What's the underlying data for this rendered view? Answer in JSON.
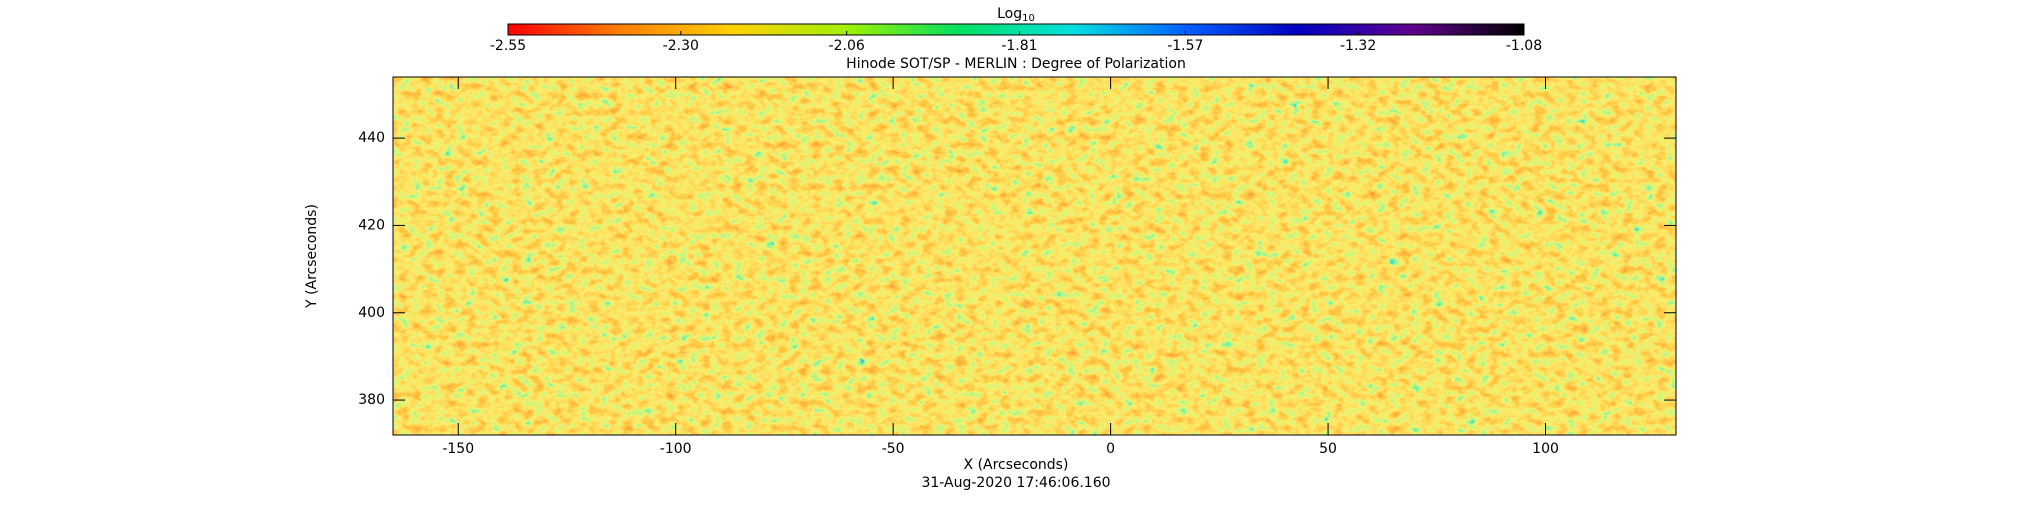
{
  "chart_data": {
    "type": "heatmap",
    "title": "Hinode SOT/SP - MERLIN : Degree of Polarization",
    "colorbar_label": "Log",
    "colorbar_label_sub": "10",
    "clim": [
      -2.55,
      -1.08
    ],
    "cticks": [
      -2.55,
      {
        "value": -2.3,
        "label": "-2.30"
      },
      -2.06,
      -1.81,
      -1.57,
      -1.32,
      -1.08
    ],
    "colormap": [
      "#ff0000",
      "#ff8000",
      "#ffd200",
      "#a0f000",
      "#00e060",
      "#00e0e0",
      "#0060ff",
      "#0000c0",
      "#600090",
      "#000000"
    ],
    "x_label": "X (Arcseconds)",
    "y_label": "Y (Arcseconds)",
    "footer": "31-Aug-2020 17:46:06.160",
    "xlim": [
      -165,
      130
    ],
    "xticks": [
      -150,
      -100,
      -50,
      0,
      50,
      100
    ],
    "ylim": [
      372,
      454
    ],
    "yticks": [
      380,
      400,
      420,
      440
    ]
  }
}
